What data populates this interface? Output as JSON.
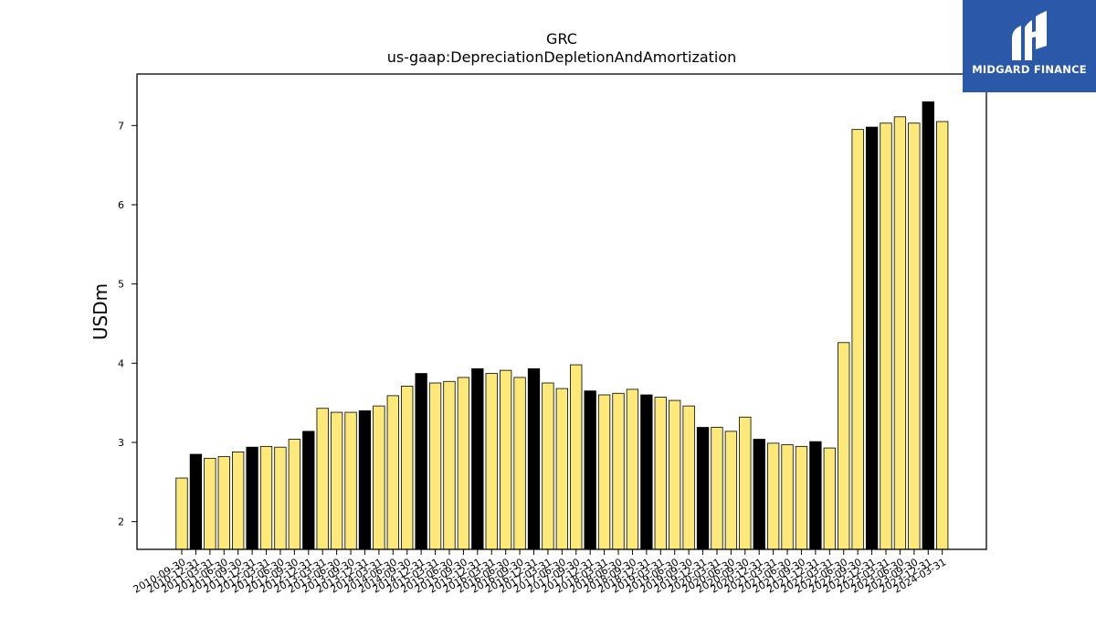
{
  "chart_data": {
    "type": "bar",
    "title": "GRC",
    "subtitle": "us-gaap:DepreciationDepletionAndAmortization",
    "xlabel": "",
    "ylabel": "USDm",
    "ylim": [
      1.65,
      7.65
    ],
    "yticks": [
      2,
      3,
      4,
      5,
      6,
      7
    ],
    "grid": false,
    "colors": {
      "quarter": "#fde97a",
      "fiscal_year_end": "#000000",
      "edge": "#000000"
    },
    "categories": [
      "2010-09-30",
      "2010-12-31",
      "2011-03-31",
      "2011-06-30",
      "2011-09-30",
      "2011-12-31",
      "2012-03-31",
      "2012-06-30",
      "2012-09-30",
      "2012-12-31",
      "2013-03-31",
      "2013-06-30",
      "2013-09-30",
      "2013-12-31",
      "2014-03-31",
      "2014-06-30",
      "2014-09-30",
      "2014-12-31",
      "2015-03-31",
      "2015-06-30",
      "2015-09-30",
      "2015-12-31",
      "2016-03-31",
      "2016-06-30",
      "2016-09-30",
      "2016-12-31",
      "2017-03-31",
      "2017-06-30",
      "2017-09-30",
      "2017-12-31",
      "2018-03-31",
      "2018-06-30",
      "2018-09-30",
      "2018-12-31",
      "2019-03-31",
      "2019-06-30",
      "2019-09-30",
      "2019-12-31",
      "2020-03-31",
      "2020-06-30",
      "2020-09-30",
      "2020-12-31",
      "2021-03-31",
      "2021-06-30",
      "2021-09-30",
      "2021-12-31",
      "2022-03-31",
      "2022-06-30",
      "2022-09-30",
      "2022-12-31",
      "2023-03-31",
      "2023-06-30",
      "2023-09-30",
      "2023-12-31",
      "2024-03-31"
    ],
    "values": [
      2.55,
      2.85,
      2.8,
      2.82,
      2.88,
      2.94,
      2.95,
      2.94,
      3.04,
      3.14,
      3.43,
      3.38,
      3.38,
      3.4,
      3.46,
      3.59,
      3.71,
      3.87,
      3.75,
      3.77,
      3.82,
      3.93,
      3.87,
      3.91,
      3.82,
      3.93,
      3.75,
      3.68,
      3.98,
      3.65,
      3.6,
      3.62,
      3.67,
      3.6,
      3.57,
      3.53,
      3.46,
      3.19,
      3.19,
      3.14,
      3.32,
      3.04,
      2.99,
      2.97,
      2.95,
      3.01,
      2.93,
      4.26,
      6.95,
      6.98,
      7.03,
      7.11,
      7.03,
      7.3,
      7.05
    ],
    "highlight": [
      false,
      true,
      false,
      false,
      false,
      true,
      false,
      false,
      false,
      true,
      false,
      false,
      false,
      true,
      false,
      false,
      false,
      true,
      false,
      false,
      false,
      true,
      false,
      false,
      false,
      true,
      false,
      false,
      false,
      true,
      false,
      false,
      false,
      true,
      false,
      false,
      false,
      true,
      false,
      false,
      false,
      true,
      false,
      false,
      false,
      true,
      false,
      false,
      false,
      true,
      false,
      false,
      false,
      true,
      false
    ]
  },
  "logo": {
    "text": "MIDGARD FINANCE"
  }
}
